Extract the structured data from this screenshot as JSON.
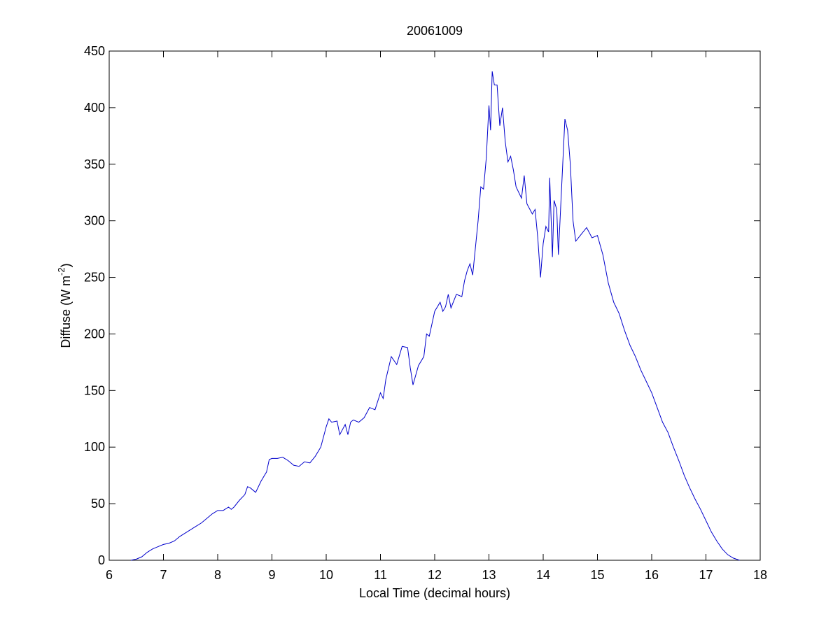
{
  "chart_data": {
    "type": "line",
    "title": "20061009",
    "xlabel": "Local Time (decimal hours)",
    "ylabel": {
      "text": "Diffuse (W m",
      "sup": "-2",
      "end": ")"
    },
    "x": [
      6.4,
      6.5,
      6.6,
      6.7,
      6.8,
      6.9,
      7.0,
      7.1,
      7.2,
      7.3,
      7.4,
      7.5,
      7.6,
      7.7,
      7.8,
      7.9,
      8.0,
      8.1,
      8.2,
      8.25,
      8.3,
      8.4,
      8.5,
      8.55,
      8.6,
      8.7,
      8.8,
      8.9,
      8.95,
      9.0,
      9.1,
      9.2,
      9.3,
      9.4,
      9.5,
      9.6,
      9.7,
      9.8,
      9.9,
      10.0,
      10.05,
      10.1,
      10.2,
      10.25,
      10.35,
      10.4,
      10.45,
      10.5,
      10.6,
      10.7,
      10.8,
      10.9,
      11.0,
      11.05,
      11.1,
      11.2,
      11.3,
      11.4,
      11.5,
      11.55,
      11.6,
      11.7,
      11.8,
      11.85,
      11.9,
      12.0,
      12.1,
      12.15,
      12.2,
      12.25,
      12.3,
      12.4,
      12.5,
      12.55,
      12.6,
      12.65,
      12.7,
      12.8,
      12.85,
      12.9,
      12.95,
      13.0,
      13.03,
      13.06,
      13.1,
      13.15,
      13.2,
      13.25,
      13.3,
      13.35,
      13.4,
      13.45,
      13.5,
      13.6,
      13.65,
      13.7,
      13.8,
      13.85,
      13.9,
      13.95,
      14.0,
      14.05,
      14.1,
      14.12,
      14.17,
      14.2,
      14.25,
      14.28,
      14.35,
      14.4,
      14.45,
      14.5,
      14.55,
      14.6,
      14.7,
      14.8,
      14.9,
      15.0,
      15.1,
      15.2,
      15.3,
      15.4,
      15.5,
      15.6,
      15.7,
      15.8,
      15.9,
      16.0,
      16.1,
      16.2,
      16.3,
      16.4,
      16.5,
      16.6,
      16.7,
      16.8,
      16.9,
      17.0,
      17.1,
      17.2,
      17.3,
      17.4,
      17.5,
      17.62
    ],
    "series": [
      {
        "name": "Diffuse",
        "color": "#0000cc",
        "values": [
          0,
          1,
          3,
          7,
          10,
          12,
          14,
          15,
          17,
          21,
          24,
          27,
          30,
          33,
          37,
          41,
          44,
          44,
          47,
          45,
          47,
          53,
          58,
          65,
          64,
          60,
          70,
          78,
          89,
          90,
          90,
          91,
          88,
          84,
          83,
          87,
          86,
          92,
          100,
          118,
          125,
          122,
          123,
          111,
          120,
          111,
          122,
          124,
          122,
          126,
          135,
          133,
          148,
          143,
          160,
          180,
          173,
          189,
          188,
          170,
          155,
          172,
          180,
          200,
          198,
          220,
          228,
          220,
          224,
          235,
          223,
          235,
          233,
          247,
          256,
          262,
          252,
          300,
          330,
          328,
          355,
          402,
          380,
          432,
          420,
          420,
          384,
          400,
          370,
          352,
          357,
          345,
          330,
          320,
          340,
          315,
          306,
          310,
          285,
          250,
          280,
          295,
          290,
          338,
          268,
          318,
          310,
          270,
          340,
          390,
          380,
          350,
          300,
          282,
          288,
          294,
          285,
          287,
          270,
          245,
          228,
          218,
          203,
          190,
          180,
          168,
          158,
          148,
          135,
          122,
          113,
          100,
          88,
          75,
          64,
          54,
          45,
          35,
          25,
          17,
          10,
          5,
          2,
          0
        ]
      }
    ],
    "xlim": [
      6,
      18
    ],
    "xticks": [
      6,
      7,
      8,
      9,
      10,
      11,
      12,
      13,
      14,
      15,
      16,
      17,
      18
    ],
    "ylim": [
      0,
      450
    ],
    "yticks": [
      0,
      50,
      100,
      150,
      200,
      250,
      300,
      350,
      400,
      450
    ]
  }
}
